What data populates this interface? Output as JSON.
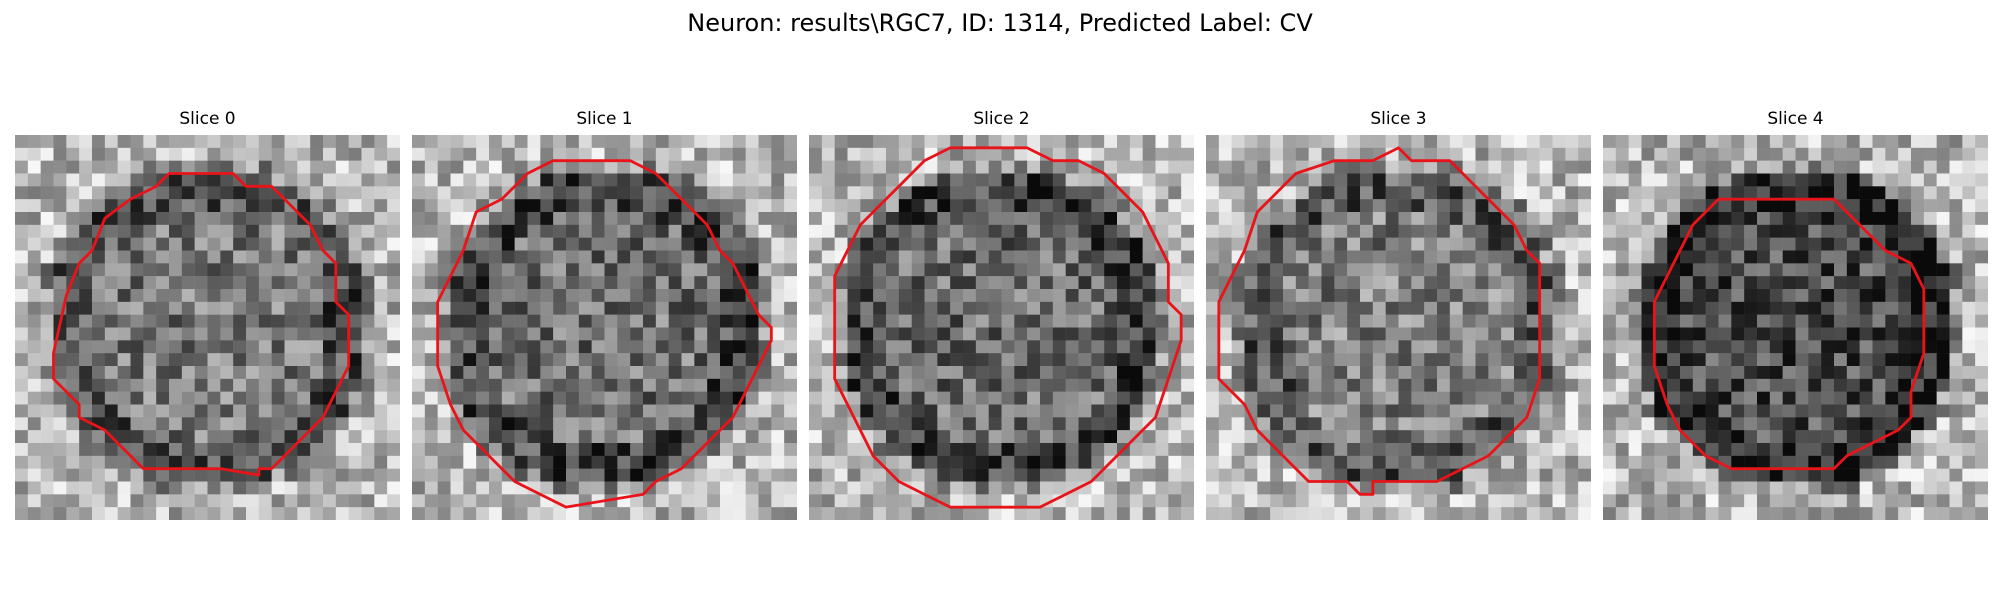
{
  "figure": {
    "title": "Neuron: results\\RGC7, ID: 1314, Predicted Label: CV",
    "outline_color": "#e8141a",
    "panels": [
      {
        "title": "Slice 0",
        "seed": 11,
        "interior_darkness": 0.05
      },
      {
        "title": "Slice 1",
        "seed": 23,
        "interior_darkness": 0.08
      },
      {
        "title": "Slice 2",
        "seed": 37,
        "interior_darkness": 0.1
      },
      {
        "title": "Slice 3",
        "seed": 51,
        "interior_darkness": 0.02
      },
      {
        "title": "Slice 4",
        "seed": 67,
        "interior_darkness": 0.22
      }
    ]
  }
}
